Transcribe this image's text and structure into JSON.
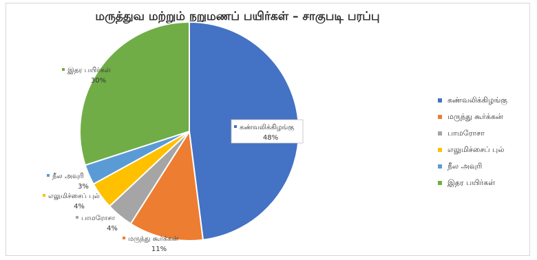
{
  "chart_data": {
    "type": "pie",
    "title": "மருத்துவ மற்றும் நறுமணப் பயிர்கள் – சாகுபடி பரப்பு",
    "legend_position": "right",
    "slices": [
      {
        "label": "கண்வலிக்கிழங்கு",
        "value": 48,
        "percent_label": "48%",
        "color": "#4472C4"
      },
      {
        "label": "மருந்து கூர்க்கன்",
        "value": 11,
        "percent_label": "11%",
        "color": "#ED7D31"
      },
      {
        "label": "பாமரோசா",
        "value": 4,
        "percent_label": "4%",
        "color": "#A5A5A5"
      },
      {
        "label": "எலுமிச்சைப் புல்",
        "value": 4,
        "percent_label": "4%",
        "color": "#FFC000"
      },
      {
        "label": "நீல அவுரி",
        "value": 3,
        "percent_label": "3%",
        "color": "#5B9BD5"
      },
      {
        "label": "இதர பயிர்கள்",
        "value": 30,
        "percent_label": "30%",
        "color": "#70AD47"
      }
    ]
  }
}
